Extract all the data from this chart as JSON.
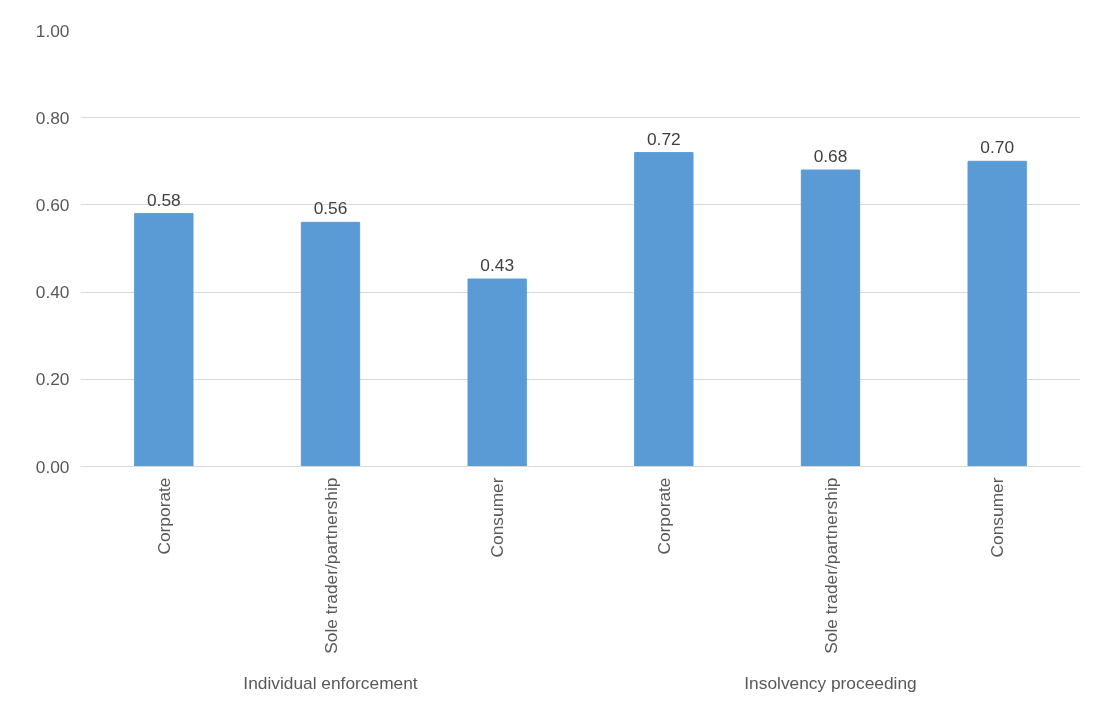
{
  "chart_data": {
    "type": "bar",
    "categories": [
      "Corporate",
      "Sole trader/partnership",
      "Consumer",
      "Corporate",
      "Sole trader/partnership",
      "Consumer"
    ],
    "values": [
      0.58,
      0.56,
      0.43,
      0.72,
      0.68,
      0.7
    ],
    "color": "#5b9bd5",
    "ylim": [
      0,
      1
    ],
    "yticks": [
      {
        "value": 0,
        "label": "0.00"
      },
      {
        "value": 0.2,
        "label": "0.20"
      },
      {
        "value": 0.4,
        "label": "0.40"
      },
      {
        "value": 0.6,
        "label": "0.60"
      },
      {
        "value": 0.8,
        "label": "0.80"
      },
      {
        "value": 1,
        "label": "1.00"
      }
    ],
    "grid": "y",
    "value_labels": [
      "0.58",
      "0.56",
      "0.43",
      "0.72",
      "0.68",
      "0.70"
    ],
    "annotations": [
      "Individual enforcement",
      "Insolvency proceeding"
    ]
  }
}
